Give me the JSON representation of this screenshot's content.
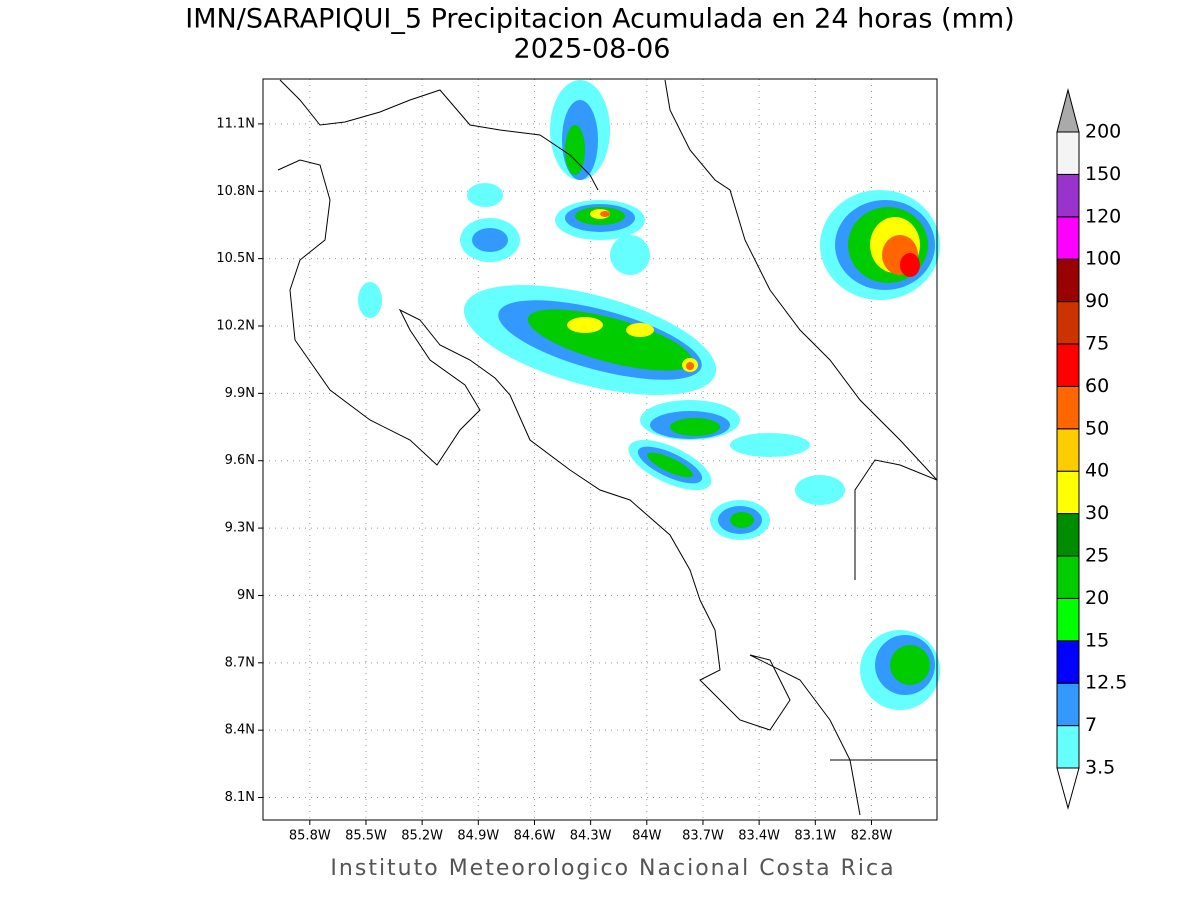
{
  "map": {
    "title": "IMN/SARAPIQUI_5 Precipitacion Acumulada en 24 horas (mm)",
    "date": "2025-08-06",
    "xlim": [
      -86.05,
      -82.45
    ],
    "ylim": [
      8.0,
      11.3
    ],
    "grid": true,
    "xticks": [
      {
        "value": -85.8,
        "label": "85.8W"
      },
      {
        "value": -85.5,
        "label": "85.5W"
      },
      {
        "value": -85.2,
        "label": "85.2W"
      },
      {
        "value": -84.9,
        "label": "84.9W"
      },
      {
        "value": -84.6,
        "label": "84.6W"
      },
      {
        "value": -84.3,
        "label": "84.3W"
      },
      {
        "value": -84,
        "label": "84W"
      },
      {
        "value": -83.7,
        "label": "83.7W"
      },
      {
        "value": -83.4,
        "label": "83.4W"
      },
      {
        "value": -83.1,
        "label": "83.1W"
      },
      {
        "value": -82.8,
        "label": "82.8W"
      }
    ],
    "yticks": [
      {
        "value": 8.1,
        "label": "8.1N"
      },
      {
        "value": 8.4,
        "label": "8.4N"
      },
      {
        "value": 8.7,
        "label": "8.7N"
      },
      {
        "value": 9,
        "label": "9N"
      },
      {
        "value": 9.3,
        "label": "9.3N"
      },
      {
        "value": 9.6,
        "label": "9.6N"
      },
      {
        "value": 9.9,
        "label": "9.9N"
      },
      {
        "value": 10.2,
        "label": "10.2N"
      },
      {
        "value": 10.5,
        "label": "10.5N"
      },
      {
        "value": 10.8,
        "label": "10.8N"
      },
      {
        "value": 11.1,
        "label": "11.1N"
      }
    ],
    "colorbar": {
      "levels": [
        3.5,
        7,
        12.5,
        15,
        20,
        25,
        30,
        40,
        50,
        60,
        75,
        90,
        100,
        120,
        150,
        200
      ],
      "colors": [
        "#66ffff",
        "#3399ff",
        "#0000ff",
        "#00ff00",
        "#00cc00",
        "#008c00",
        "#ffff00",
        "#ffcc00",
        "#ff6600",
        "#ff0000",
        "#cc3300",
        "#990000",
        "#ff00ff",
        "#9933cc",
        "#f4f4f4"
      ],
      "under_color": "#ffffff",
      "over_color": "#aaaaaa"
    },
    "footer": "Instituto Meteorologico Nacional Costa Rica"
  }
}
